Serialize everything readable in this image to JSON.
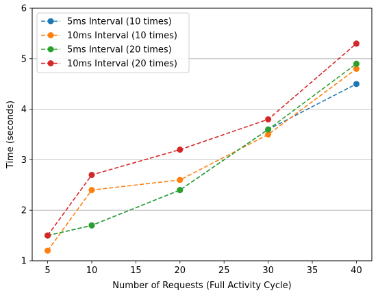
{
  "chart_data": {
    "type": "line",
    "title": "",
    "xlabel": "Number of Requests (Full Activity Cycle)",
    "ylabel": "Time (seconds)",
    "xlim": [
      3.25,
      41.75
    ],
    "ylim": [
      1,
      6
    ],
    "xticks": [
      5,
      10,
      15,
      20,
      25,
      30,
      35,
      40
    ],
    "yticks": [
      1,
      2,
      3,
      4,
      5,
      6
    ],
    "grid": "y-axis horizontal lines",
    "legend_position": "upper-left",
    "line_style": "dashed",
    "marker": "circle",
    "x": [
      5,
      10,
      20,
      30,
      40
    ],
    "series": [
      {
        "name": "5ms Interval (10 times)",
        "color": "#1f77b4",
        "values": [
          1.5,
          1.7,
          2.4,
          3.6,
          4.5
        ]
      },
      {
        "name": "10ms Interval (10 times)",
        "color": "#ff7f0e",
        "values": [
          1.2,
          2.4,
          2.6,
          3.5,
          4.8
        ]
      },
      {
        "name": "5ms Interval (20 times)",
        "color": "#2ca02c",
        "values": [
          1.5,
          1.7,
          2.4,
          3.6,
          4.9
        ]
      },
      {
        "name": "10ms Interval (20 times)",
        "color": "#d62728",
        "values": [
          1.5,
          2.7,
          3.2,
          3.8,
          5.3
        ]
      }
    ]
  }
}
